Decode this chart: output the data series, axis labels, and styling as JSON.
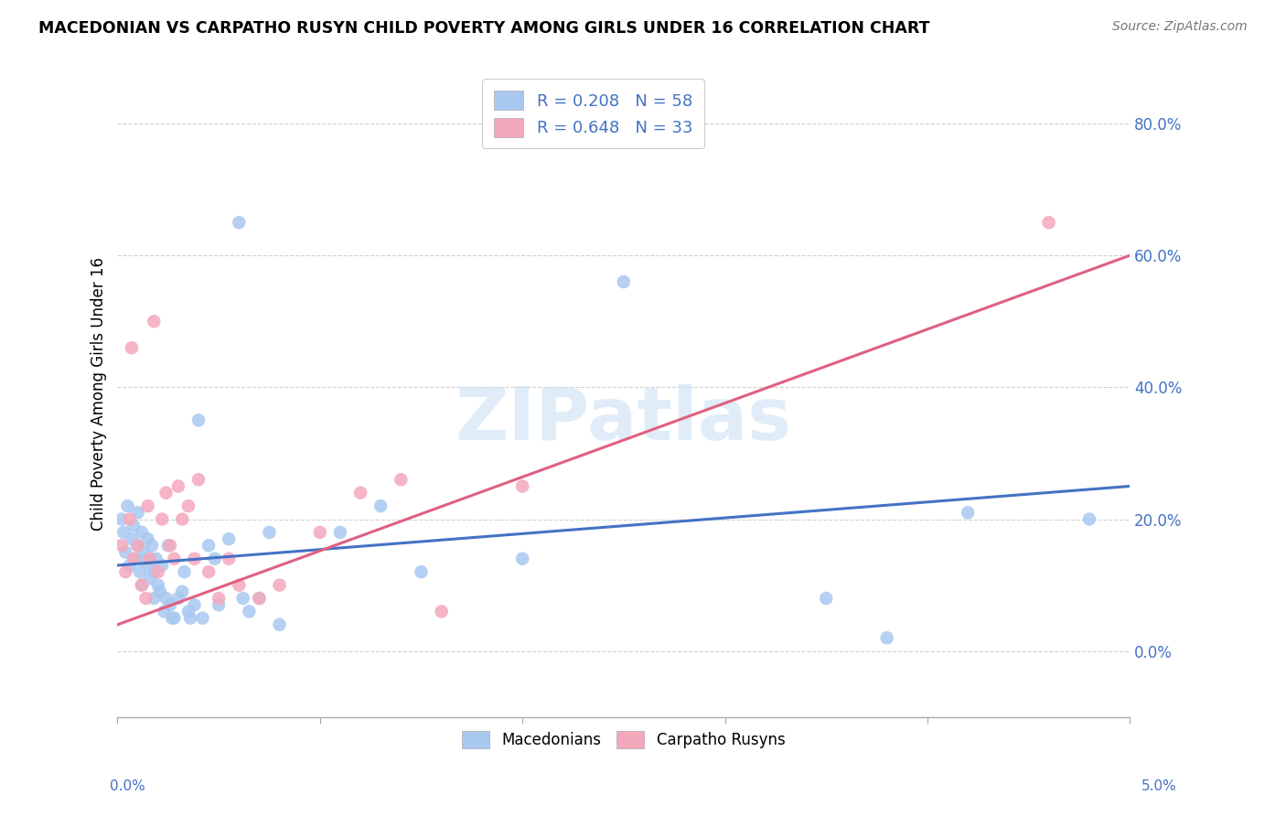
{
  "title": "MACEDONIAN VS CARPATHO RUSYN CHILD POVERTY AMONG GIRLS UNDER 16 CORRELATION CHART",
  "source": "Source: ZipAtlas.com",
  "ylabel": "Child Poverty Among Girls Under 16",
  "xlim": [
    0.0,
    5.0
  ],
  "ylim": [
    -10.0,
    88.0
  ],
  "yticks": [
    0,
    20,
    40,
    60,
    80
  ],
  "ytick_labels": [
    "0.0%",
    "20.0%",
    "40.0%",
    "60.0%",
    "80.0%"
  ],
  "mac_R": 0.208,
  "mac_N": 58,
  "cru_R": 0.648,
  "cru_N": 33,
  "mac_color": "#a8c8f0",
  "cru_color": "#f4a8bc",
  "mac_line_color": "#4472c4",
  "cru_line_color": "#e06080",
  "legend_text_color": "#4472c4",
  "watermark": "ZIPatlas",
  "background_color": "#ffffff",
  "grid_color": "#d0d0d0",
  "macedonians_x": [
    0.02,
    0.03,
    0.04,
    0.05,
    0.06,
    0.07,
    0.08,
    0.09,
    0.1,
    0.1,
    0.11,
    0.12,
    0.12,
    0.13,
    0.14,
    0.15,
    0.15,
    0.16,
    0.17,
    0.18,
    0.18,
    0.19,
    0.2,
    0.21,
    0.22,
    0.23,
    0.24,
    0.25,
    0.26,
    0.27,
    0.28,
    0.3,
    0.32,
    0.33,
    0.35,
    0.36,
    0.38,
    0.4,
    0.42,
    0.45,
    0.48,
    0.5,
    0.55,
    0.6,
    0.62,
    0.65,
    0.7,
    0.75,
    0.8,
    1.1,
    1.3,
    1.5,
    2.0,
    2.5,
    3.5,
    3.8,
    4.2,
    4.8
  ],
  "macedonians_y": [
    20.0,
    18.0,
    15.0,
    22.0,
    13.0,
    17.0,
    19.0,
    14.0,
    16.0,
    21.0,
    12.0,
    18.0,
    10.0,
    15.0,
    14.0,
    17.0,
    13.0,
    11.0,
    16.0,
    12.0,
    8.0,
    14.0,
    10.0,
    9.0,
    13.0,
    6.0,
    8.0,
    16.0,
    7.0,
    5.0,
    5.0,
    8.0,
    9.0,
    12.0,
    6.0,
    5.0,
    7.0,
    35.0,
    5.0,
    16.0,
    14.0,
    7.0,
    17.0,
    65.0,
    8.0,
    6.0,
    8.0,
    18.0,
    4.0,
    18.0,
    22.0,
    12.0,
    14.0,
    56.0,
    8.0,
    2.0,
    21.0,
    20.0
  ],
  "carpatho_x": [
    0.02,
    0.04,
    0.06,
    0.07,
    0.08,
    0.1,
    0.12,
    0.14,
    0.15,
    0.16,
    0.18,
    0.2,
    0.22,
    0.24,
    0.26,
    0.28,
    0.3,
    0.32,
    0.35,
    0.38,
    0.4,
    0.45,
    0.5,
    0.55,
    0.6,
    0.7,
    0.8,
    1.0,
    1.2,
    1.4,
    1.6,
    2.0,
    4.6
  ],
  "carpatho_y": [
    16.0,
    12.0,
    20.0,
    46.0,
    14.0,
    16.0,
    10.0,
    8.0,
    22.0,
    14.0,
    50.0,
    12.0,
    20.0,
    24.0,
    16.0,
    14.0,
    25.0,
    20.0,
    22.0,
    14.0,
    26.0,
    12.0,
    8.0,
    14.0,
    10.0,
    8.0,
    10.0,
    18.0,
    24.0,
    26.0,
    6.0,
    25.0,
    65.0
  ],
  "mac_trend_x0": 0.0,
  "mac_trend_y0": 13.0,
  "mac_trend_x1": 5.0,
  "mac_trend_y1": 25.0,
  "cru_trend_x0": 0.0,
  "cru_trend_y0": 4.0,
  "cru_trend_x1": 5.0,
  "cru_trend_y1": 60.0
}
